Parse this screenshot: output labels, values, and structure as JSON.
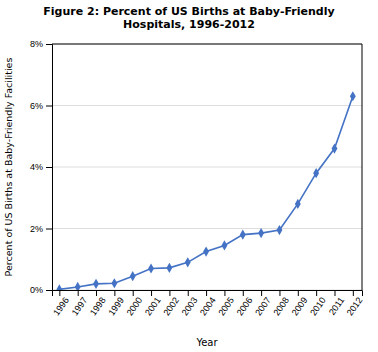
{
  "chart_data": {
    "type": "line",
    "title": "Figure 2: Percent of US Births at Baby-Friendly\nHospitals, 1996-2012",
    "x_label": "Year",
    "y_label": "Percent of US Births at Baby-Friendly Facilities",
    "x": [
      1996,
      1997,
      1998,
      1999,
      2000,
      2001,
      2002,
      2003,
      2004,
      2005,
      2006,
      2007,
      2008,
      2009,
      2010,
      2011,
      2012
    ],
    "values": [
      0.02,
      0.1,
      0.2,
      0.22,
      0.45,
      0.7,
      0.72,
      0.9,
      1.25,
      1.45,
      1.8,
      1.85,
      1.95,
      2.8,
      3.8,
      4.6,
      6.3
    ],
    "color": "#4472C4",
    "marker": "diamond",
    "xlim": [
      1995.6,
      2012.5
    ],
    "xticks": [
      1996,
      1997,
      1998,
      1999,
      2000,
      2001,
      2002,
      2003,
      2004,
      2005,
      2006,
      2007,
      2008,
      2009,
      2010,
      2011,
      2012
    ],
    "ylim": [
      0,
      8
    ],
    "yticks": [
      {
        "value": 0,
        "label": "0%"
      },
      {
        "value": 2,
        "label": "2%"
      },
      {
        "value": 4,
        "label": "4%"
      },
      {
        "value": 6,
        "label": "6%"
      },
      {
        "value": 8,
        "label": "8%"
      }
    ],
    "grid": true
  }
}
